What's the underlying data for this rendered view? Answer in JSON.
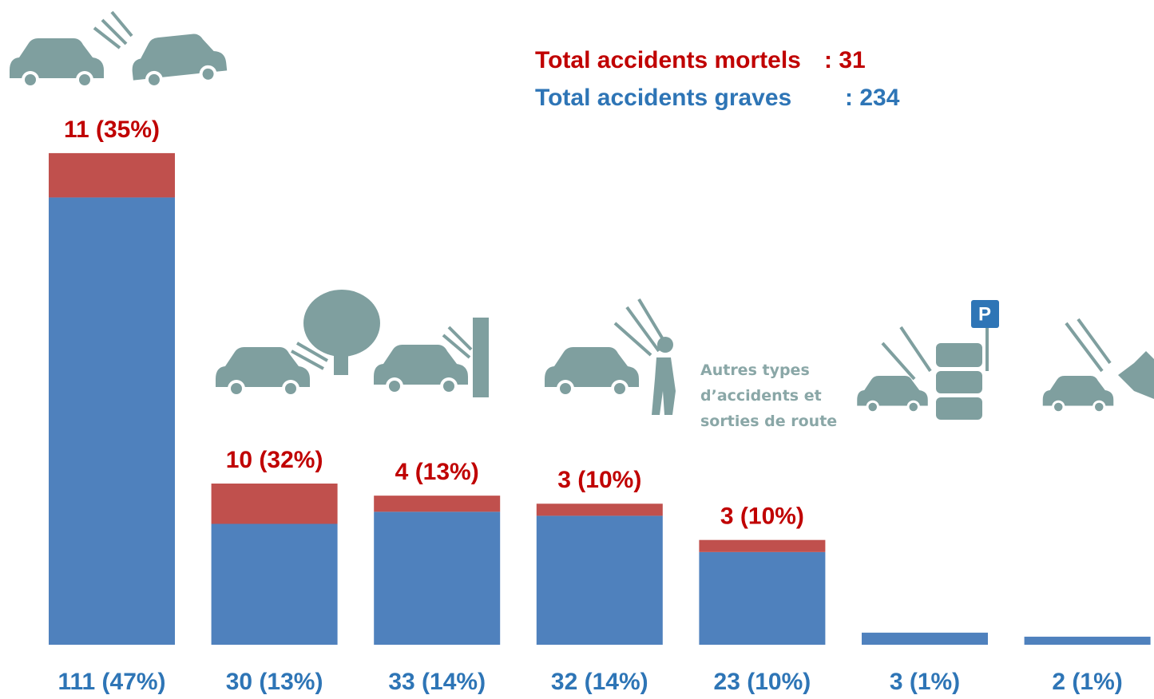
{
  "chart_data": {
    "type": "stacked_bar",
    "categories": [
      null,
      null,
      null,
      null,
      "Autres types d’accidents et sorties de route",
      null,
      null
    ],
    "series": [
      {
        "name": "Total accidents graves",
        "color": "#4f81bd",
        "values": [
          111,
          30,
          33,
          32,
          23,
          3,
          2
        ],
        "value_labels": [
          "111 (47%)",
          "30 (13%)",
          "33 (14%)",
          "32 (14%)",
          "23 (10%)",
          "3 (1%)",
          "2 (1%)"
        ]
      },
      {
        "name": "Total accidents mortels",
        "color": "#c0504d",
        "values": [
          11,
          10,
          4,
          3,
          3,
          0,
          0
        ],
        "value_labels": [
          "11 (35%)",
          "10 (32%)",
          "4 (13%)",
          "3 (10%)",
          "3 (10%)",
          null,
          null
        ]
      }
    ],
    "annotations": [
      ": 31",
      ": 234"
    ]
  }
}
